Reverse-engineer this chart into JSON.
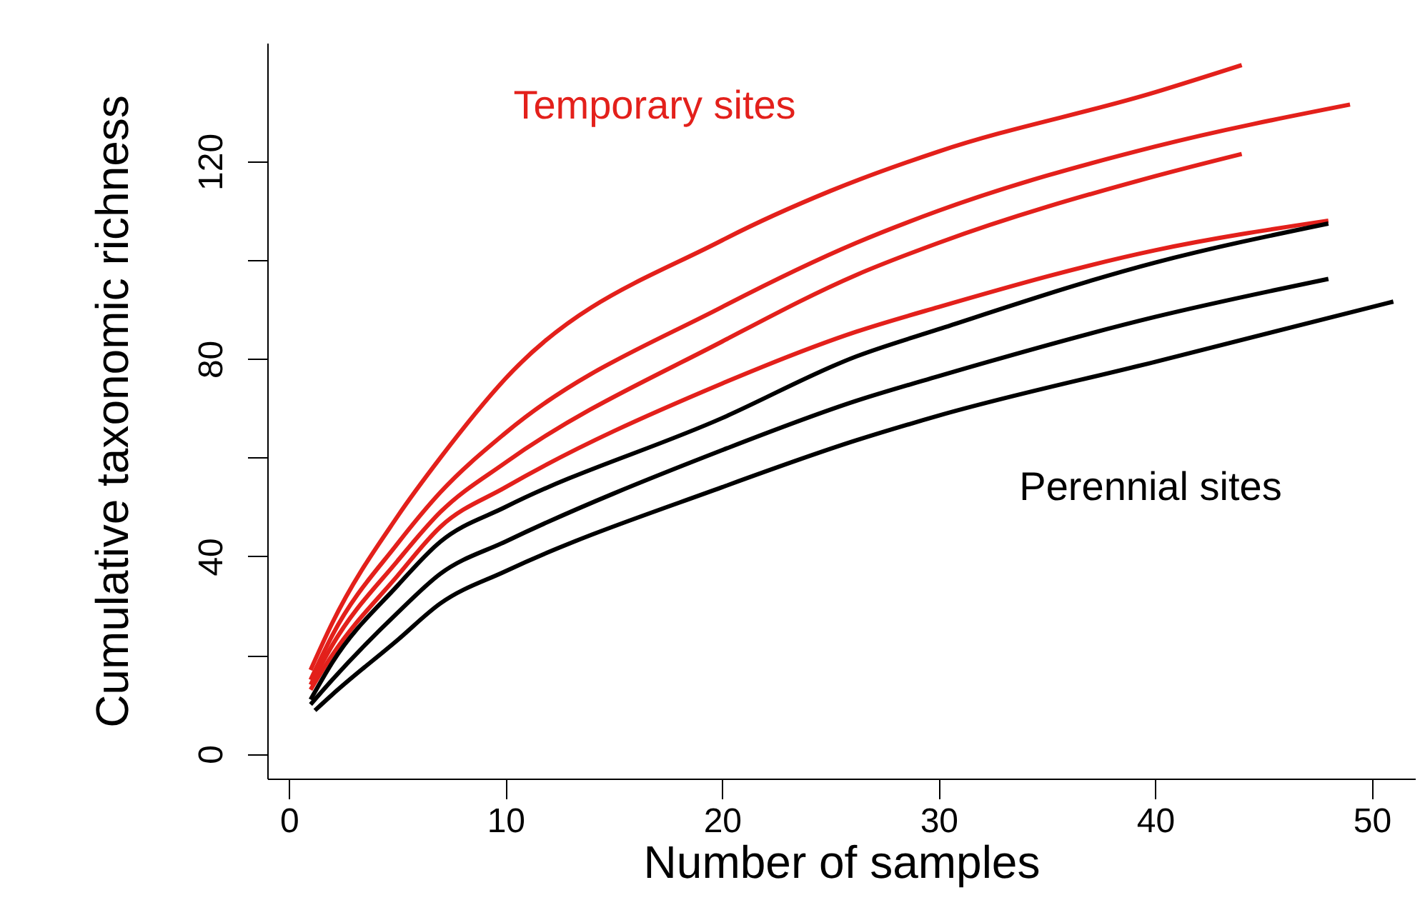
{
  "chart_data": {
    "type": "line",
    "xlabel": "Number of samples",
    "ylabel": "Cumulative taxonomic richness",
    "xlim": [
      -1,
      52
    ],
    "ylim": [
      -5,
      144
    ],
    "xticks": [
      0,
      10,
      20,
      30,
      40,
      50
    ],
    "yticks": [
      0,
      {
        "value": 20,
        "label": null
      },
      40,
      {
        "value": 60,
        "label": null
      },
      80,
      {
        "value": 100,
        "label": null
      },
      120
    ],
    "line_style": "solid",
    "marker": "none",
    "series": [
      {
        "color": "#e3201b",
        "x": [
          1,
          2,
          5,
          7,
          10,
          20,
          25,
          30,
          40,
          44
        ],
        "values": [
          17,
          26.5,
          48,
          60,
          76,
          104,
          114,
          122,
          134,
          139.5
        ]
      },
      {
        "color": "#e3201b",
        "x": [
          1,
          2,
          5,
          7,
          10,
          20,
          26.2,
          30,
          40,
          49
        ],
        "values": [
          15,
          24,
          42.5,
          53,
          65,
          90.5,
          103.5,
          110,
          123,
          131.5
        ]
      },
      {
        "color": "#e3201b",
        "x": [
          1,
          2,
          5,
          7,
          10,
          20,
          26.2,
          30,
          40,
          44
        ],
        "values": [
          14,
          22,
          39,
          49,
          59,
          83.5,
          97,
          103.5,
          117,
          121.5
        ]
      },
      {
        "color": "#e3201b",
        "x": [
          1,
          2,
          5,
          7,
          10,
          20,
          26.2,
          30,
          40,
          48
        ],
        "values": [
          13,
          20,
          36,
          46,
          54,
          75,
          85.5,
          90.5,
          102,
          108
        ]
      },
      {
        "color": "#000000",
        "x": [
          1,
          2,
          5,
          7,
          10,
          20,
          26.2,
          30,
          40,
          48
        ],
        "values": [
          11,
          18.5,
          34,
          43,
          50,
          68,
          80.5,
          86,
          99.5,
          107.4
        ]
      },
      {
        "color": "#000000",
        "x": [
          1,
          2,
          5,
          7,
          10,
          20,
          26.2,
          30,
          40,
          48
        ],
        "values": [
          10,
          15,
          28.5,
          36.5,
          43,
          61.5,
          71.5,
          76.5,
          88.5,
          96.2
        ]
      },
      {
        "color": "#000000",
        "x": [
          1.2,
          2,
          5,
          7,
          10,
          20,
          26.2,
          30,
          40,
          51
        ],
        "values": [
          8.8,
          12,
          23,
          30.5,
          37,
          54,
          63.5,
          68.5,
          79.4,
          91.6
        ]
      }
    ],
    "annotations": [
      "Temporary sites",
      "Perennial sites"
    ]
  }
}
